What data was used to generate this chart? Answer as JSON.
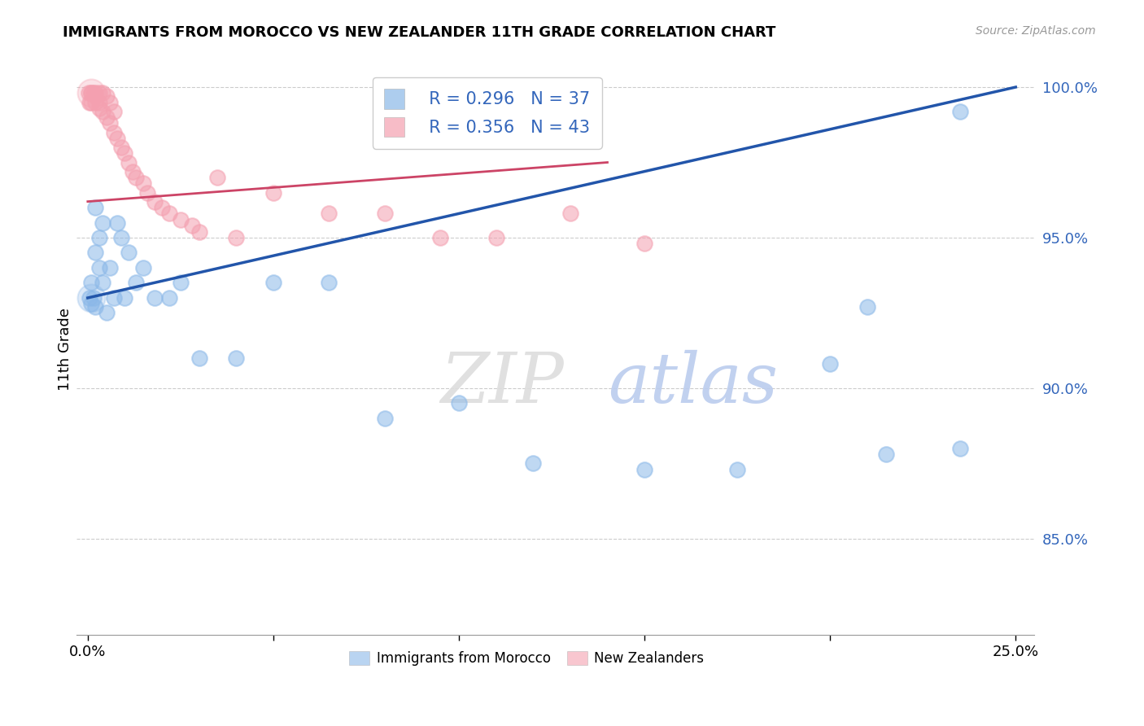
{
  "title": "IMMIGRANTS FROM MOROCCO VS NEW ZEALANDER 11TH GRADE CORRELATION CHART",
  "source": "Source: ZipAtlas.com",
  "ylabel": "11th Grade",
  "blue_color": "#8BB8E8",
  "pink_color": "#F4A0B0",
  "blue_line_color": "#2255AA",
  "pink_line_color": "#CC4466",
  "legend_blue_r": "R = 0.296",
  "legend_blue_n": "N = 37",
  "legend_pink_r": "R = 0.356",
  "legend_pink_n": "N = 43",
  "xlim": [
    -0.003,
    0.255
  ],
  "ylim": [
    0.818,
    1.008
  ],
  "yticks": [
    0.85,
    0.9,
    0.95,
    1.0
  ],
  "ytick_labels": [
    "85.0%",
    "90.0%",
    "95.0%",
    "100.0%"
  ],
  "blue_x": [
    0.0005,
    0.001,
    0.001,
    0.0015,
    0.002,
    0.002,
    0.002,
    0.003,
    0.003,
    0.004,
    0.004,
    0.005,
    0.006,
    0.007,
    0.008,
    0.009,
    0.01,
    0.011,
    0.013,
    0.015,
    0.018,
    0.022,
    0.025,
    0.03,
    0.04,
    0.05,
    0.065,
    0.08,
    0.1,
    0.12,
    0.15,
    0.175,
    0.2,
    0.215,
    0.235,
    0.235,
    0.21
  ],
  "blue_y": [
    0.93,
    0.928,
    0.935,
    0.93,
    0.927,
    0.945,
    0.96,
    0.94,
    0.95,
    0.935,
    0.955,
    0.925,
    0.94,
    0.93,
    0.955,
    0.95,
    0.93,
    0.945,
    0.935,
    0.94,
    0.93,
    0.93,
    0.935,
    0.91,
    0.91,
    0.935,
    0.935,
    0.89,
    0.895,
    0.875,
    0.873,
    0.873,
    0.908,
    0.878,
    0.88,
    0.992,
    0.927
  ],
  "pink_x": [
    0.0003,
    0.0005,
    0.001,
    0.001,
    0.001,
    0.0015,
    0.002,
    0.002,
    0.002,
    0.003,
    0.003,
    0.003,
    0.004,
    0.004,
    0.005,
    0.005,
    0.006,
    0.006,
    0.007,
    0.007,
    0.008,
    0.009,
    0.01,
    0.011,
    0.012,
    0.013,
    0.015,
    0.016,
    0.018,
    0.02,
    0.022,
    0.025,
    0.028,
    0.03,
    0.035,
    0.04,
    0.05,
    0.065,
    0.08,
    0.095,
    0.11,
    0.13,
    0.15
  ],
  "pink_y": [
    0.998,
    0.995,
    0.998,
    0.998,
    0.995,
    0.998,
    0.998,
    0.997,
    0.995,
    0.998,
    0.995,
    0.993,
    0.992,
    0.998,
    0.99,
    0.997,
    0.988,
    0.995,
    0.985,
    0.992,
    0.983,
    0.98,
    0.978,
    0.975,
    0.972,
    0.97,
    0.968,
    0.965,
    0.962,
    0.96,
    0.958,
    0.956,
    0.954,
    0.952,
    0.97,
    0.95,
    0.965,
    0.958,
    0.958,
    0.95,
    0.95,
    0.958,
    0.948
  ],
  "blue_line_x0": 0.0,
  "blue_line_x1": 0.25,
  "blue_line_y0": 0.93,
  "blue_line_y1": 1.0,
  "pink_line_x0": 0.0,
  "pink_line_x1": 0.14,
  "pink_line_y0": 0.962,
  "pink_line_y1": 0.975
}
